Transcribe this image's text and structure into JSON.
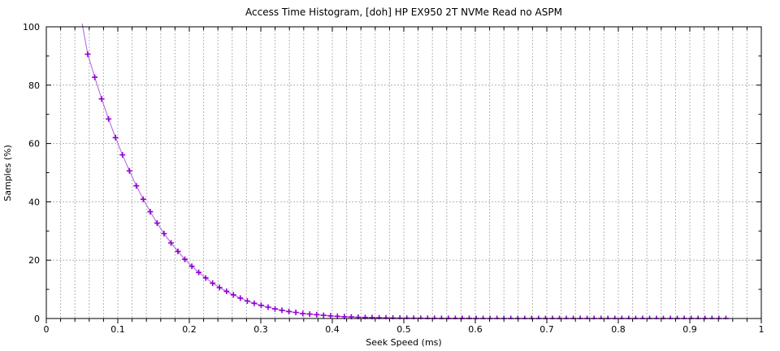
{
  "chart_data": {
    "type": "line",
    "title": "Access Time Histogram, [doh] HP EX950 2T NVMe Read no ASPM",
    "xlabel": "Seek Speed (ms)",
    "ylabel": "Samples (%)",
    "xlim": [
      0,
      1
    ],
    "ylim": [
      0,
      100
    ],
    "x_major_ticks": [
      0,
      0.1,
      0.2,
      0.3,
      0.4,
      0.5,
      0.6,
      0.7,
      0.8,
      0.9,
      1
    ],
    "x_tick_labels": [
      "0",
      "0.1",
      "0.2",
      "0.3",
      "0.4",
      "0.5",
      "0.6",
      "0.7",
      "0.8",
      "0.9",
      "1"
    ],
    "x_minor_step": 0.02,
    "y_major_ticks": [
      0,
      20,
      40,
      60,
      80,
      100
    ],
    "y_tick_labels": [
      "0",
      "20",
      "40",
      "60",
      "80",
      "100"
    ],
    "y_minor_step": 10,
    "grid": {
      "vertical_step": 0.02,
      "horizontal_step": 20,
      "style": "dashed",
      "color": "#b4b4b4"
    },
    "legend": "none",
    "series": [
      {
        "name": "samples-percent",
        "marker": "plus",
        "line_color": "#b36be0",
        "marker_color": "#9400d3",
        "points": [
          [
            0.048,
            104.0
          ],
          [
            0.058,
            90.6
          ],
          [
            0.0677,
            82.7
          ],
          [
            0.0774,
            75.3
          ],
          [
            0.0871,
            68.4
          ],
          [
            0.0968,
            62.0
          ],
          [
            0.1065,
            56.1
          ],
          [
            0.1162,
            50.6
          ],
          [
            0.1259,
            45.5
          ],
          [
            0.1356,
            40.9
          ],
          [
            0.1453,
            36.6
          ],
          [
            0.155,
            32.7
          ],
          [
            0.1647,
            29.1
          ],
          [
            0.1744,
            25.9
          ],
          [
            0.1841,
            23.0
          ],
          [
            0.1938,
            20.3
          ],
          [
            0.2035,
            17.9
          ],
          [
            0.2132,
            15.8
          ],
          [
            0.2229,
            13.9
          ],
          [
            0.2326,
            12.1
          ],
          [
            0.2423,
            10.6
          ],
          [
            0.252,
            9.3
          ],
          [
            0.2617,
            8.1
          ],
          [
            0.2714,
            7.0
          ],
          [
            0.2811,
            6.0
          ],
          [
            0.2908,
            5.2
          ],
          [
            0.3005,
            4.5
          ],
          [
            0.3102,
            3.9
          ],
          [
            0.3199,
            3.3
          ],
          [
            0.3296,
            2.8
          ],
          [
            0.3393,
            2.4
          ],
          [
            0.349,
            2.1
          ],
          [
            0.3587,
            1.7
          ],
          [
            0.3684,
            1.5
          ],
          [
            0.3781,
            1.3
          ],
          [
            0.3878,
            1.1
          ],
          [
            0.3975,
            0.88
          ],
          [
            0.4072,
            0.74
          ],
          [
            0.4169,
            0.62
          ],
          [
            0.4266,
            0.52
          ],
          [
            0.4363,
            0.43
          ],
          [
            0.446,
            0.36
          ],
          [
            0.4557,
            0.3
          ],
          [
            0.4654,
            0.24
          ],
          [
            0.4751,
            0.2
          ],
          [
            0.4848,
            0.17
          ],
          [
            0.4945,
            0.14
          ],
          [
            0.5042,
            0.11
          ],
          [
            0.5139,
            0.09
          ],
          [
            0.5236,
            0.07
          ],
          [
            0.5333,
            0.06
          ],
          [
            0.543,
            0.05
          ],
          [
            0.5527,
            0.04
          ],
          [
            0.5624,
            0.03
          ],
          [
            0.5721,
            0.03
          ],
          [
            0.5818,
            0.02
          ],
          [
            0.5915,
            0.02
          ],
          [
            0.6012,
            0.01
          ],
          [
            0.6109,
            0.01
          ],
          [
            0.6206,
            0.01
          ],
          [
            0.6303,
            0.01
          ],
          [
            0.64,
            0.01
          ],
          [
            0.6497,
            0.0
          ],
          [
            0.6594,
            0.0
          ],
          [
            0.6691,
            0.0
          ],
          [
            0.6788,
            0.0
          ],
          [
            0.6885,
            0.0
          ],
          [
            0.6982,
            0.0
          ],
          [
            0.7079,
            0.0
          ],
          [
            0.7176,
            0.0
          ],
          [
            0.7273,
            0.0
          ],
          [
            0.737,
            0.0
          ],
          [
            0.7467,
            0.0
          ],
          [
            0.7564,
            0.0
          ],
          [
            0.7661,
            0.0
          ],
          [
            0.7758,
            0.0
          ],
          [
            0.7855,
            0.0
          ],
          [
            0.7952,
            0.0
          ],
          [
            0.8049,
            0.0
          ],
          [
            0.8146,
            0.0
          ],
          [
            0.8243,
            0.0
          ],
          [
            0.834,
            0.0
          ],
          [
            0.8437,
            0.0
          ],
          [
            0.8534,
            0.0
          ],
          [
            0.8631,
            0.0
          ],
          [
            0.8728,
            0.0
          ],
          [
            0.8825,
            0.0
          ],
          [
            0.8922,
            0.0
          ],
          [
            0.9019,
            0.0
          ],
          [
            0.9116,
            0.0
          ],
          [
            0.9213,
            0.0
          ],
          [
            0.931,
            0.0
          ],
          [
            0.9407,
            0.0
          ],
          [
            0.9504,
            0.0
          ]
        ]
      }
    ]
  }
}
